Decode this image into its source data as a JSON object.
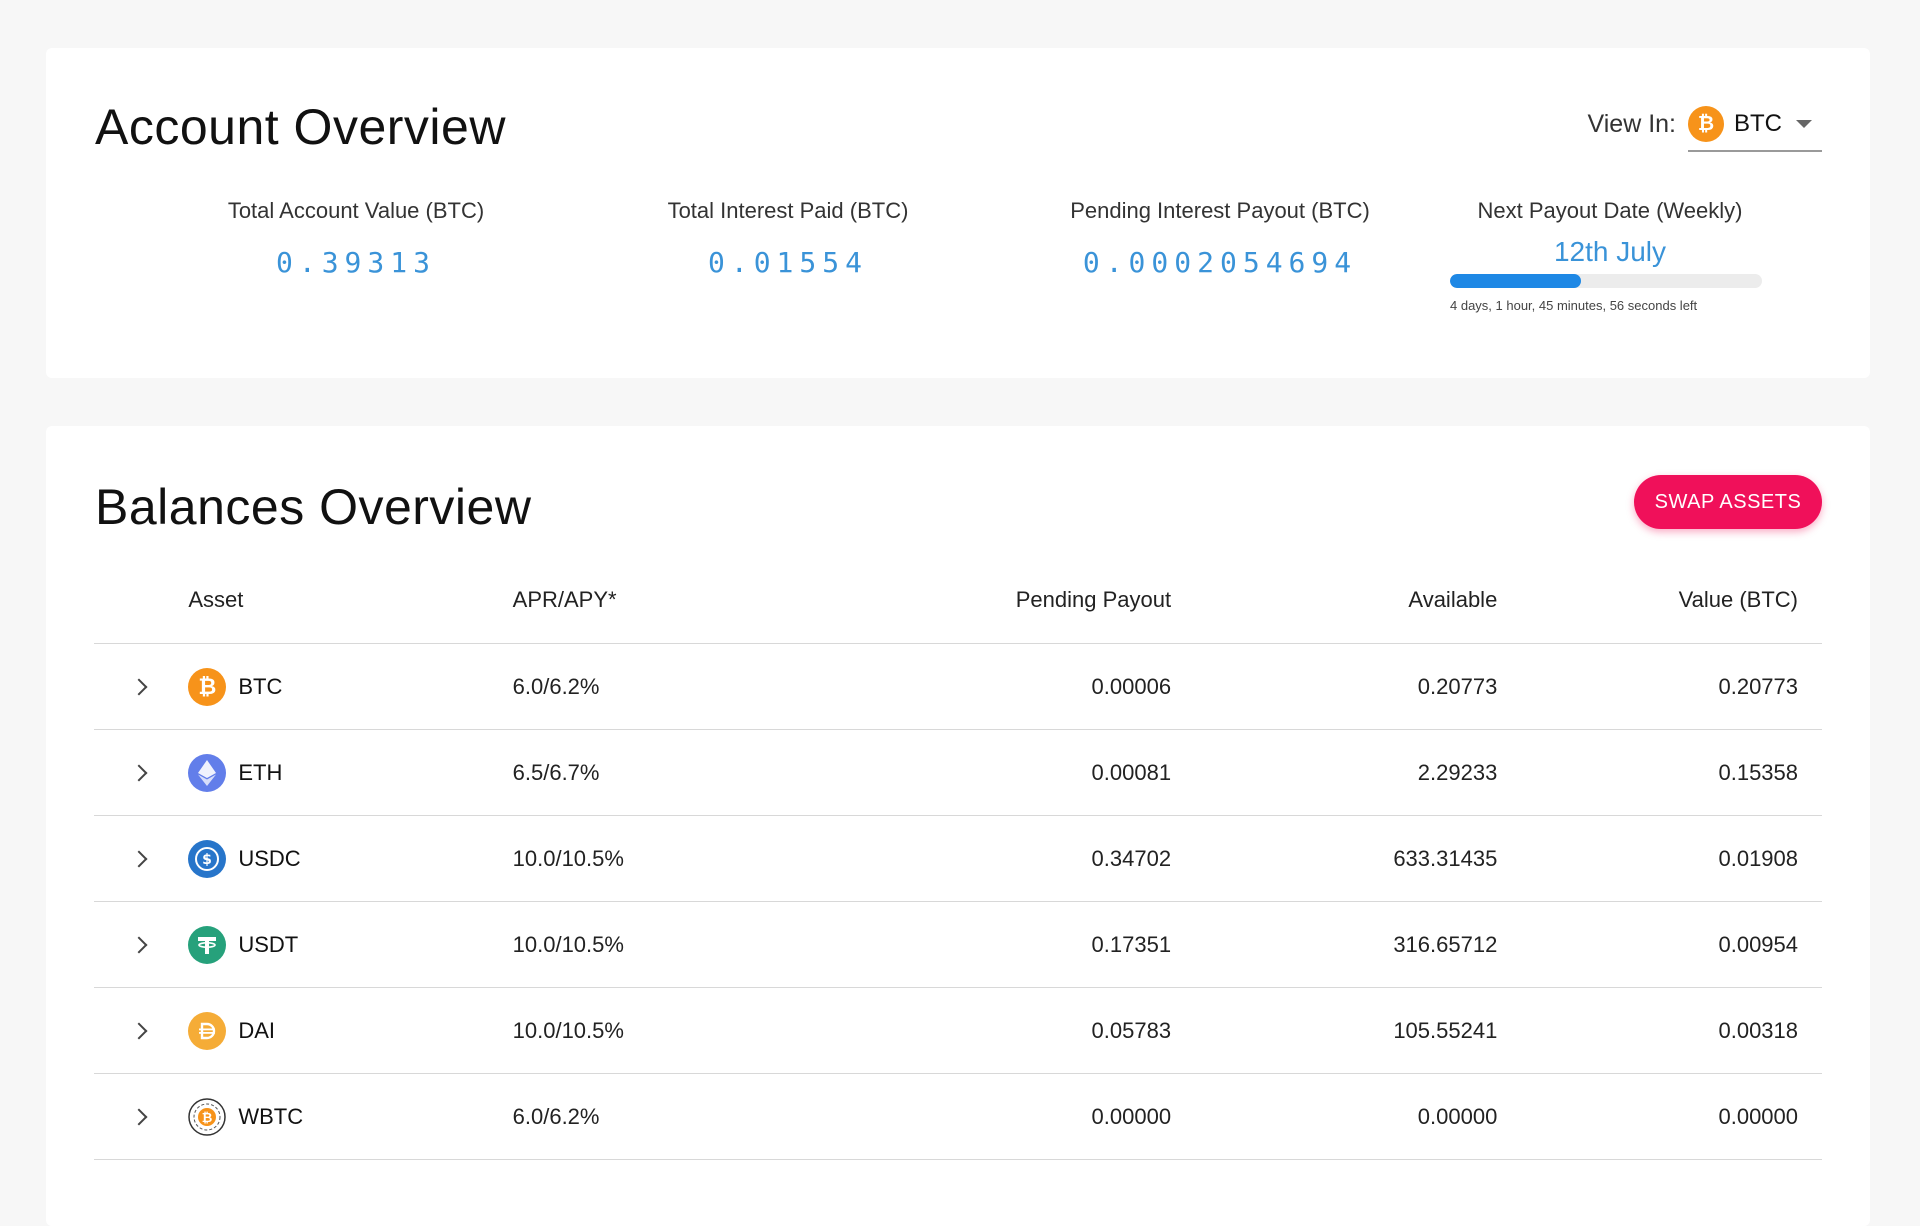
{
  "account": {
    "title": "Account Overview",
    "view_in_label": "View In:",
    "view_in_value": "BTC",
    "stats": [
      {
        "label": "Total Account Value (BTC)",
        "value": "0.39313"
      },
      {
        "label": "Total Interest Paid (BTC)",
        "value": "0.01554"
      },
      {
        "label": "Pending Interest Payout (BTC)",
        "value": "0.0002054694"
      }
    ],
    "payout": {
      "label": "Next Payout Date (Weekly)",
      "date": "12th July",
      "progress": 0.42,
      "remaining": "4 days, 1 hour, 45 minutes, 56 seconds left"
    }
  },
  "balances": {
    "title": "Balances Overview",
    "swap_label": "SWAP ASSETS",
    "columns": [
      "Asset",
      "APR/APY*",
      "Pending Payout",
      "Available",
      "Value (BTC)"
    ],
    "rows": [
      {
        "asset": "BTC",
        "icon": "btc-icon",
        "color": "#f7931a",
        "apr": "6.0/6.2%",
        "pending": "0.00006",
        "available": "0.20773",
        "value": "0.20773"
      },
      {
        "asset": "ETH",
        "icon": "eth-icon",
        "color": "#627eea",
        "apr": "6.5/6.7%",
        "pending": "0.00081",
        "available": "2.29233",
        "value": "0.15358"
      },
      {
        "asset": "USDC",
        "icon": "usdc-icon",
        "color": "#2775ca",
        "apr": "10.0/10.5%",
        "pending": "0.34702",
        "available": "633.31435",
        "value": "0.01908"
      },
      {
        "asset": "USDT",
        "icon": "usdt-icon",
        "color": "#26a17b",
        "apr": "10.0/10.5%",
        "pending": "0.17351",
        "available": "316.65712",
        "value": "0.00954"
      },
      {
        "asset": "DAI",
        "icon": "dai-icon",
        "color": "#f5ac37",
        "apr": "10.0/10.5%",
        "pending": "0.05783",
        "available": "105.55241",
        "value": "0.00318"
      },
      {
        "asset": "WBTC",
        "icon": "wbtc-icon",
        "color": "#f7931a",
        "apr": "6.0/6.2%",
        "pending": "0.00000",
        "available": "0.00000",
        "value": "0.00000"
      }
    ]
  },
  "colors": {
    "accent_blue": "#3a93d8",
    "progress_blue": "#1e88e5",
    "swap_pink": "#f0105a"
  }
}
